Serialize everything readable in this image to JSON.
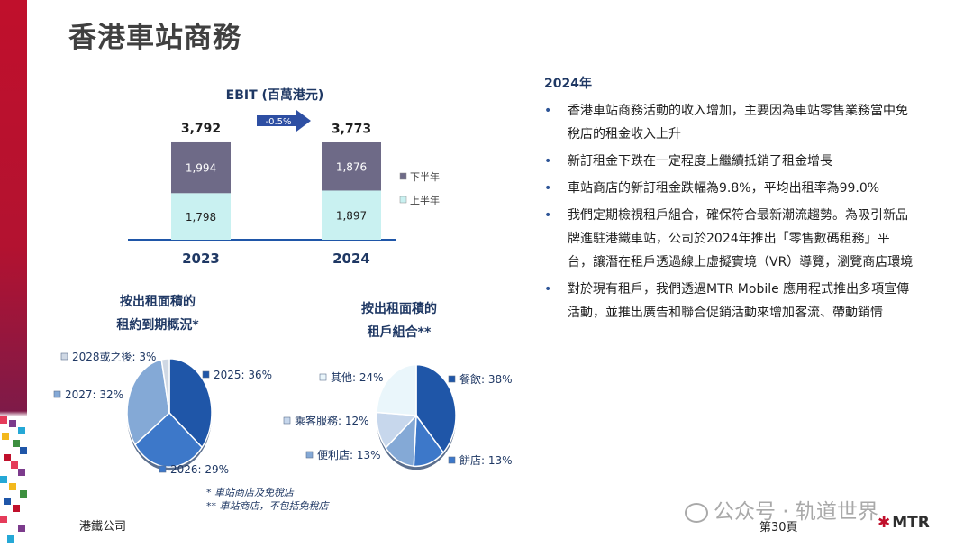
{
  "page": {
    "title": "香港車站商務",
    "footer_company": "港鐵公司",
    "page_number": "第30頁",
    "watermark": "公众号 · 轨道世界",
    "logo_text": "MTR"
  },
  "notes": {
    "line1": "* 車站商店及免稅店",
    "line2": "** 車站商店，不包括免稅店"
  },
  "summary": {
    "year": "2024年",
    "bullets": [
      "香港車站商務活動的收入增加，主要因為車站零售業務當中免稅店的租金收入上升",
      "新訂租金下跌在一定程度上繼續抵銷了租金增長",
      "車站商店的新訂租金跌幅為9.8%，平均出租率為99.0%",
      "我們定期檢視租戶組合，確保符合最新潮流趨勢。為吸引新品牌進駐港鐵車站，公司於2024年推出「零售數碼租務」平台，讓潛在租戶透過線上虛擬實境（VR）導覽，瀏覽商店環境",
      "對於現有租戶，我們透過MTR Mobile 應用程式推出多項宣傳活動，並推出廣告和聯合促銷活動來增加客流、帶動銷情"
    ]
  },
  "chart_data": [
    {
      "type": "bar",
      "stacked": true,
      "title": "EBIT (百萬港元)",
      "categories": [
        "2023",
        "2024"
      ],
      "series": [
        {
          "name": "上半年",
          "values": [
            1798,
            1897
          ],
          "color": "#c9f1f1"
        },
        {
          "name": "下半年",
          "values": [
            1994,
            1876
          ],
          "color": "#6e6a87"
        }
      ],
      "totals": [
        "3,792",
        "3,773"
      ],
      "value_labels": [
        [
          "1,798",
          "1,897"
        ],
        [
          "1,994",
          "1,876"
        ]
      ],
      "change_label": "-0.5%",
      "legend_position": "right",
      "ylim": [
        0,
        4000
      ]
    },
    {
      "type": "pie",
      "title": "按出租面積的\n租約到期概況*",
      "title_lines": [
        "按出租面積的",
        "租約到期概況*"
      ],
      "slices": [
        {
          "label": "2025: 36%",
          "value": 36,
          "color": "#1f56a8"
        },
        {
          "label": "2026: 29%",
          "value": 29,
          "color": "#3d78c9"
        },
        {
          "label": "2027: 32%",
          "value": 32,
          "color": "#84a9d6"
        },
        {
          "label": "2028或之後: 3%",
          "value": 3,
          "color": "#cfd8e4"
        }
      ]
    },
    {
      "type": "pie",
      "title": "按出租面積的\n租戶組合**",
      "title_lines": [
        "按出租面積的",
        "租戶組合**"
      ],
      "slices": [
        {
          "label": "餐飲: 38%",
          "value": 38,
          "color": "#1f56a8"
        },
        {
          "label": "餅店: 13%",
          "value": 13,
          "color": "#3d78c9"
        },
        {
          "label": "便利店: 13%",
          "value": 13,
          "color": "#84a9d6"
        },
        {
          "label": "乘客服務: 12%",
          "value": 12,
          "color": "#c7d7ec"
        },
        {
          "label": "其他: 24%",
          "value": 24,
          "color": "#eaf6fb"
        }
      ]
    }
  ]
}
